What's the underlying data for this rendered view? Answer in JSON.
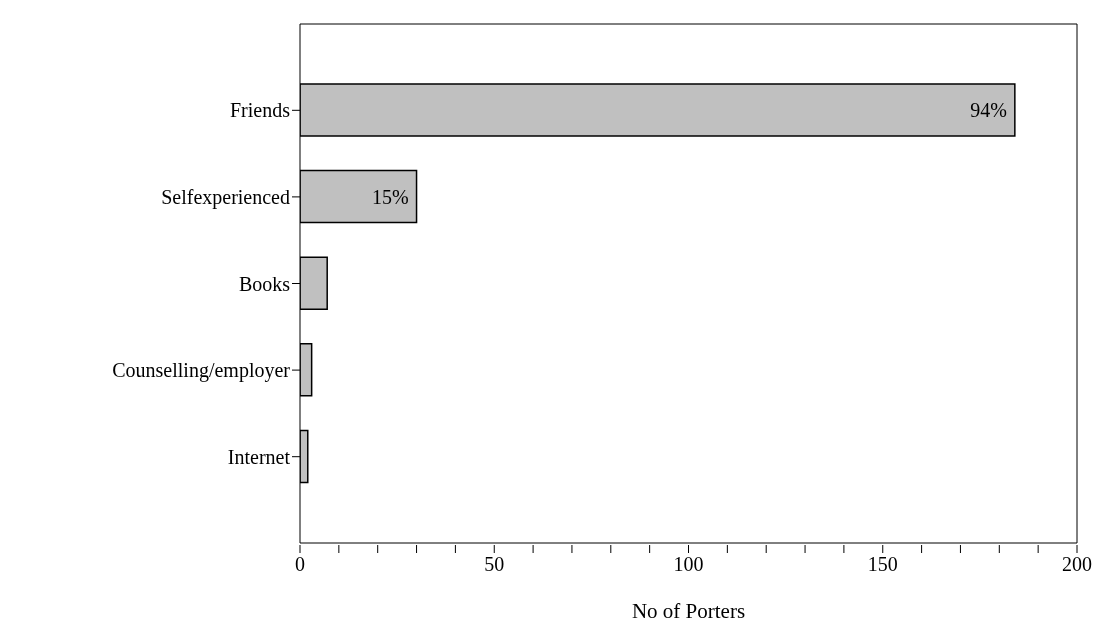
{
  "chart_data": {
    "type": "bar",
    "orientation": "horizontal",
    "xlabel": "No of Porters",
    "categories": [
      "Friends",
      "Selfexperienced",
      "Books",
      "Counselling/employer",
      "Internet"
    ],
    "values": [
      184,
      30,
      7,
      3,
      2
    ],
    "annotations": [
      {
        "text": "94%",
        "x": 184,
        "y": "Friends"
      },
      {
        "text": "15%",
        "x": 30,
        "y": "Selfexperienced"
      }
    ],
    "color": "#c0c0c0",
    "xlim": [
      0,
      200
    ],
    "xticks": [
      0,
      {
        "value": 10,
        "label": null
      },
      {
        "value": 20,
        "label": null
      },
      {
        "value": 30,
        "label": null
      },
      {
        "value": 40,
        "label": null
      },
      50,
      {
        "value": 60,
        "label": null
      },
      {
        "value": 70,
        "label": null
      },
      {
        "value": 80,
        "label": null
      },
      {
        "value": 90,
        "label": null
      },
      100,
      {
        "value": 110,
        "label": null
      },
      {
        "value": 120,
        "label": null
      },
      {
        "value": 130,
        "label": null
      },
      {
        "value": 140,
        "label": null
      },
      150,
      {
        "value": 160,
        "label": null
      },
      {
        "value": 170,
        "label": null
      },
      {
        "value": 180,
        "label": null
      },
      {
        "value": 190,
        "label": null
      },
      200
    ],
    "grid": false,
    "legend": false
  }
}
